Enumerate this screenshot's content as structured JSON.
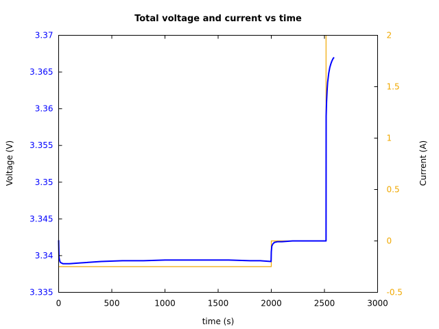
{
  "chart_data": {
    "type": "line",
    "title": "Total voltage and current vs time",
    "xlabel": "time (s)",
    "ylabel_left": "Voltage (V)",
    "ylabel_right": "Current (A)",
    "xlim": [
      0,
      3000
    ],
    "ylim_left": [
      3.335,
      3.37
    ],
    "ylim_right": [
      -0.5,
      2
    ],
    "x_ticks": [
      "0",
      "500",
      "1000",
      "1500",
      "2000",
      "2500",
      "3000"
    ],
    "y_left_ticks": [
      "3.335",
      "3.34",
      "3.345",
      "3.35",
      "3.355",
      "3.36",
      "3.365",
      "3.37"
    ],
    "y_right_ticks": [
      "-0.5",
      "0",
      "0.5",
      "1",
      "1.5",
      "2"
    ],
    "grid": false,
    "colors": {
      "voltage": "#0000ff",
      "current": "#f0a800",
      "axes": "#000000"
    },
    "series": [
      {
        "axis": "left",
        "x": [
          0,
          3,
          8,
          15,
          25,
          40,
          60,
          100,
          200,
          400,
          600,
          800,
          1000,
          1200,
          1400,
          1600,
          1800,
          1900,
          1998,
          2000,
          2005,
          2015,
          2030,
          2060,
          2100,
          2200,
          2300,
          2400,
          2515,
          2516,
          2520,
          2525,
          2530,
          2540,
          2550,
          2560,
          2570,
          2580,
          2590
        ],
        "values": [
          3.3421,
          3.3398,
          3.3394,
          3.3391,
          3.339,
          3.3389,
          3.3389,
          3.3389,
          3.339,
          3.3392,
          3.3393,
          3.3393,
          3.3394,
          3.3394,
          3.3394,
          3.3394,
          3.3393,
          3.3393,
          3.3392,
          3.3405,
          3.3413,
          3.3416,
          3.3418,
          3.3419,
          3.3419,
          3.342,
          3.342,
          3.342,
          3.342,
          3.359,
          3.361,
          3.3625,
          3.3636,
          3.3648,
          3.3656,
          3.3661,
          3.3665,
          3.3668,
          3.367
        ]
      },
      {
        "axis": "right",
        "x": [
          0,
          2000,
          2000,
          2515,
          2515
        ],
        "values": [
          -0.25,
          -0.25,
          0.0,
          0.0,
          2.0
        ]
      }
    ]
  }
}
